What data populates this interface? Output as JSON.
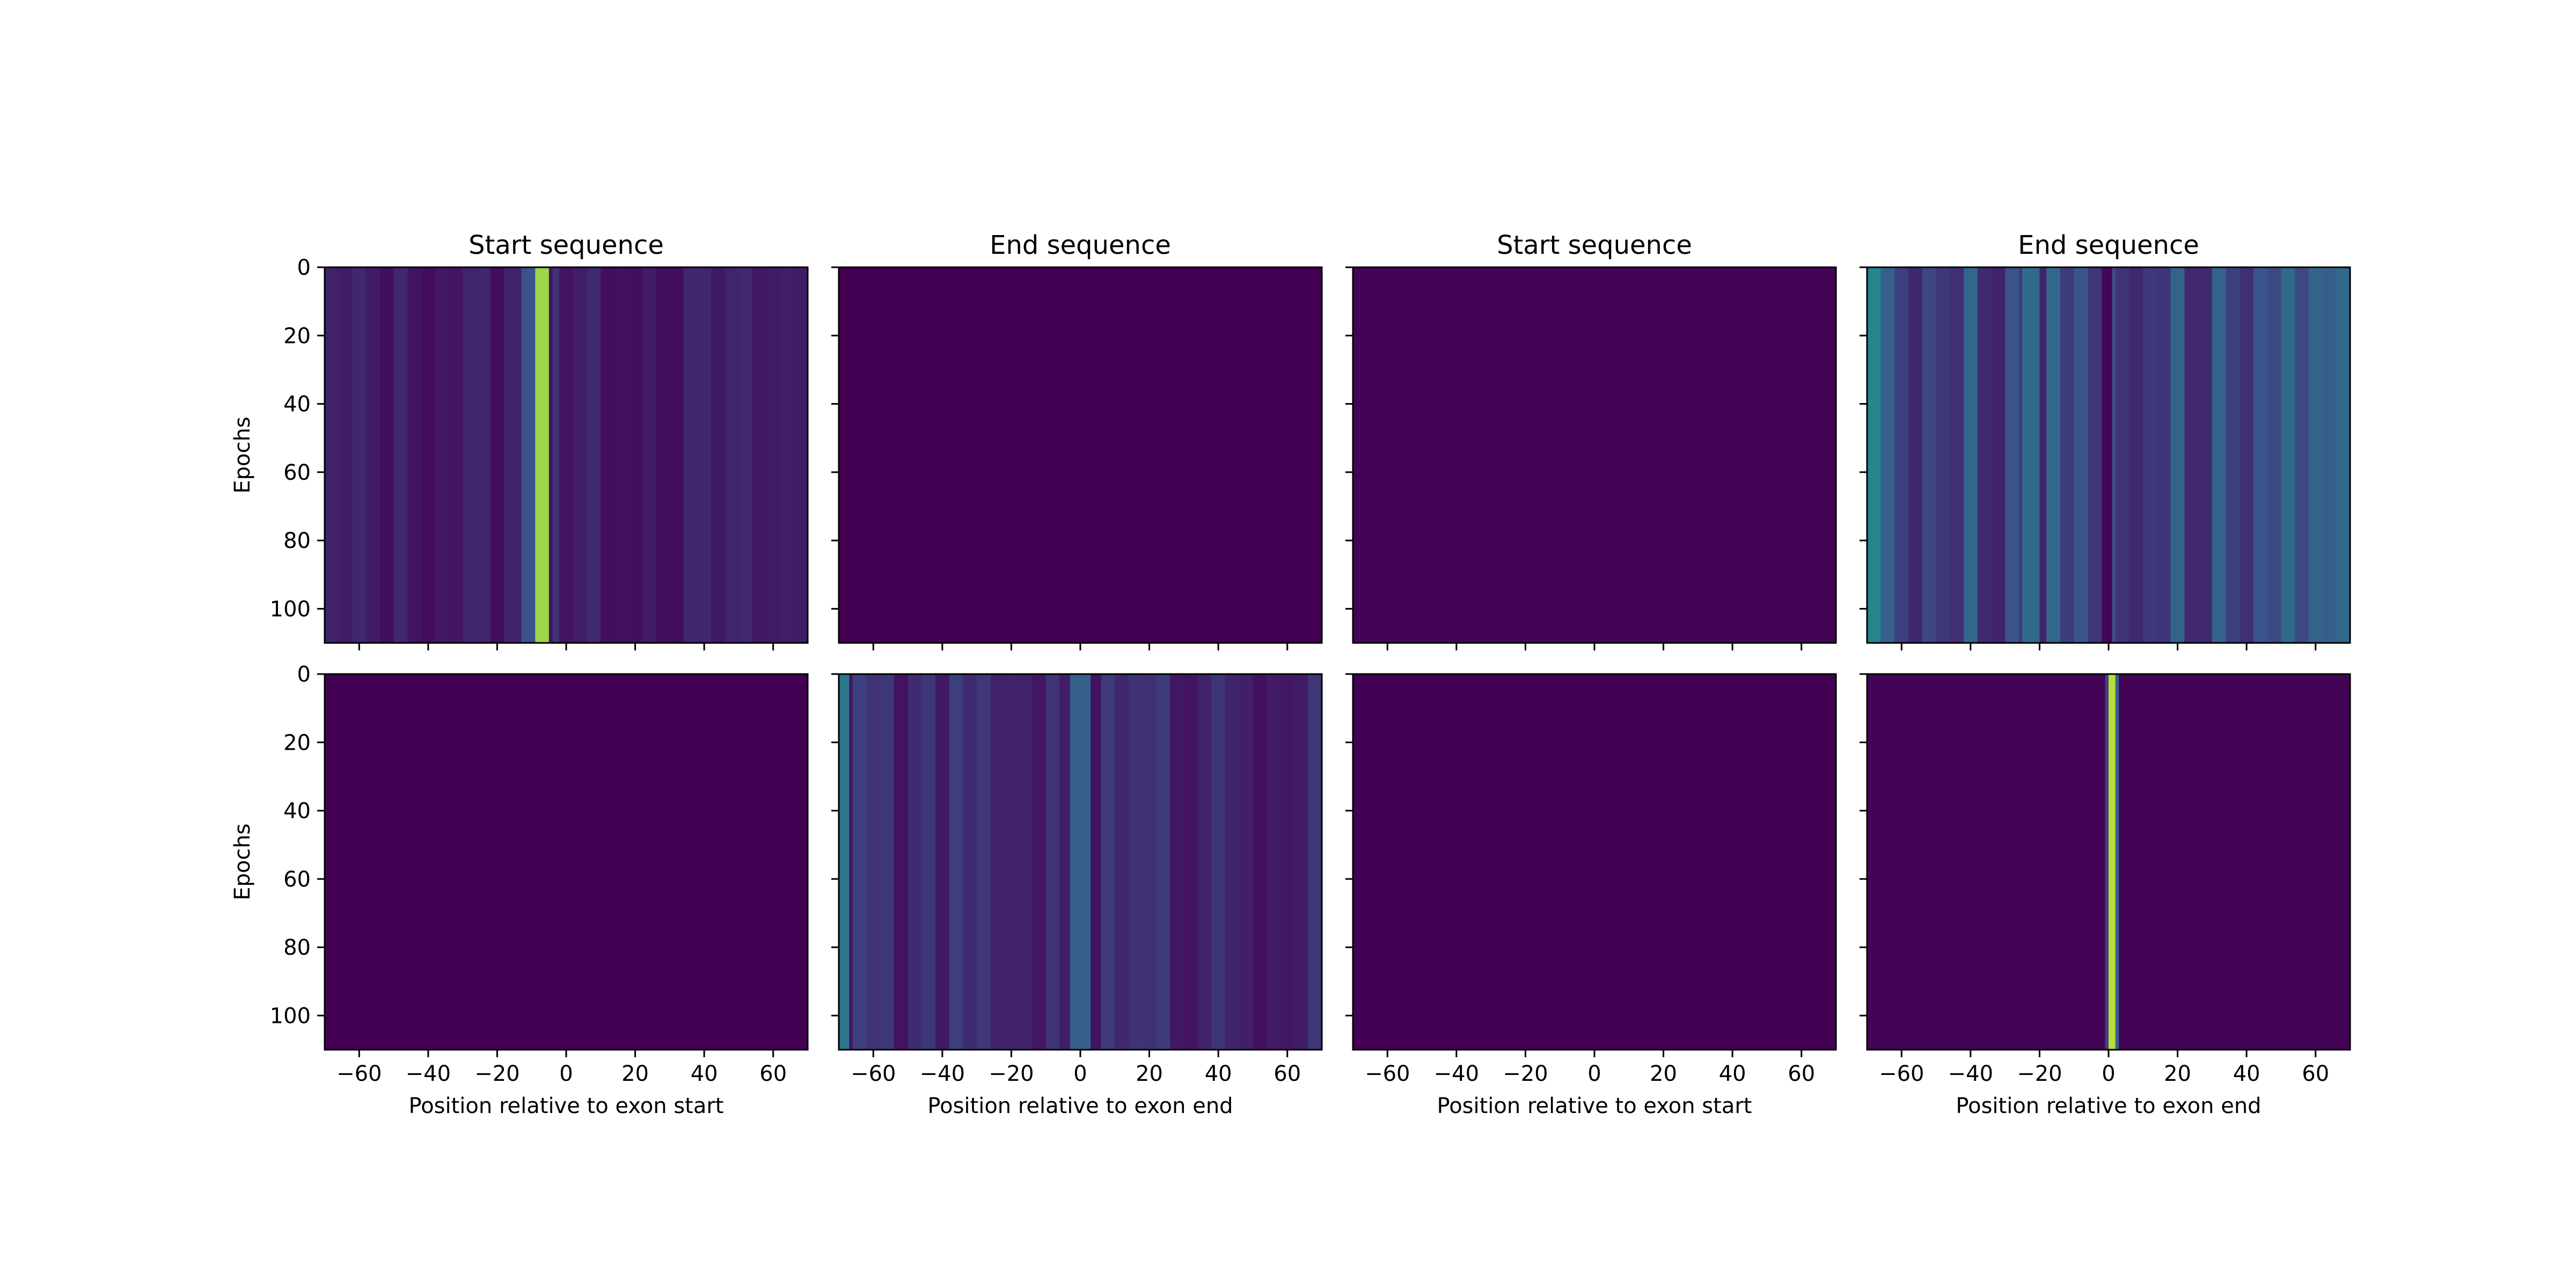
{
  "chart_data": [
    {
      "type": "heatmap",
      "title": "Start sequence",
      "xlabel": "",
      "ylabel": "Epochs",
      "xlim": [
        -70,
        70
      ],
      "ylim": [
        110,
        0
      ],
      "xticks": [
        -60,
        -40,
        -20,
        0,
        20,
        40,
        60
      ],
      "yticks": [
        0,
        20,
        40,
        60,
        80,
        100
      ],
      "show_xticklabels": false,
      "show_yticklabels": true,
      "colormap": "viridis",
      "features": [
        {
          "x": [
            -9,
            -5
          ],
          "intensity": 0.85
        },
        {
          "x": [
            -13,
            -9
          ],
          "intensity": 0.25
        },
        {
          "x": [
            -4,
            -2
          ],
          "intensity": 0.15
        }
      ],
      "background_intensity": 0.08
    },
    {
      "type": "heatmap",
      "title": "End sequence",
      "xlabel": "",
      "ylabel": "",
      "xlim": [
        -70,
        70
      ],
      "ylim": [
        110,
        0
      ],
      "xticks": [
        -60,
        -40,
        -20,
        0,
        20,
        40,
        60
      ],
      "yticks": [
        0,
        20,
        40,
        60,
        80,
        100
      ],
      "show_xticklabels": false,
      "show_yticklabels": false,
      "colormap": "viridis",
      "features": [],
      "background_intensity": 0.0
    },
    {
      "type": "heatmap",
      "title": "Start sequence",
      "xlabel": "",
      "ylabel": "",
      "xlim": [
        -70,
        70
      ],
      "ylim": [
        110,
        0
      ],
      "xticks": [
        -60,
        -40,
        -20,
        0,
        20,
        40,
        60
      ],
      "yticks": [
        0,
        20,
        40,
        60,
        80,
        100
      ],
      "show_xticklabels": false,
      "show_yticklabels": false,
      "colormap": "viridis",
      "features": [],
      "background_intensity": 0.01
    },
    {
      "type": "heatmap",
      "title": "End sequence",
      "xlabel": "",
      "ylabel": "",
      "xlim": [
        -70,
        70
      ],
      "ylim": [
        110,
        0
      ],
      "xticks": [
        -60,
        -40,
        -20,
        0,
        20,
        40,
        60
      ],
      "yticks": [
        0,
        20,
        40,
        60,
        80,
        100
      ],
      "show_xticklabels": false,
      "show_yticklabels": false,
      "colormap": "viridis",
      "features": [
        {
          "x": [
            -70,
            -66
          ],
          "intensity": 0.45
        },
        {
          "x": [
            -25,
            -20
          ],
          "intensity": 0.35
        },
        {
          "x": [
            -2,
            1
          ],
          "intensity": 0.02
        }
      ],
      "background_intensity": 0.22
    },
    {
      "type": "heatmap",
      "title": "",
      "xlabel": "",
      "ylabel": "Epochs",
      "xlim": [
        -70,
        70
      ],
      "ylim": [
        110,
        0
      ],
      "xticks": [
        -60,
        -40,
        -20,
        0,
        20,
        40,
        60
      ],
      "yticks": [
        0,
        20,
        40,
        60,
        80,
        100
      ],
      "show_xticklabels": true,
      "show_yticklabels": true,
      "colormap": "viridis",
      "features": [],
      "background_intensity": 0.0
    },
    {
      "type": "heatmap",
      "title": "",
      "xlabel": "Position relative to exon end",
      "ylabel": "",
      "xlim": [
        -70,
        70
      ],
      "ylim": [
        110,
        0
      ],
      "xticks": [
        -60,
        -40,
        -20,
        0,
        20,
        40,
        60
      ],
      "yticks": [
        0,
        20,
        40,
        60,
        80,
        100
      ],
      "show_xticklabels": true,
      "show_yticklabels": false,
      "colormap": "viridis",
      "features": [
        {
          "x": [
            -70,
            -67
          ],
          "intensity": 0.4
        },
        {
          "x": [
            -3,
            3
          ],
          "intensity": 0.3
        }
      ],
      "background_intensity": 0.12
    },
    {
      "type": "heatmap",
      "title": "",
      "xlabel": "Position relative to exon start",
      "ylabel": "",
      "xlim": [
        -70,
        70
      ],
      "ylim": [
        110,
        0
      ],
      "xticks": [
        -60,
        -40,
        -20,
        0,
        20,
        40,
        60
      ],
      "yticks": [
        0,
        20,
        40,
        60,
        80,
        100
      ],
      "show_xticklabels": true,
      "show_yticklabels": false,
      "colormap": "viridis",
      "features": [],
      "background_intensity": 0.0
    },
    {
      "type": "heatmap",
      "title": "",
      "xlabel": "Position relative to exon end",
      "ylabel": "",
      "xlim": [
        -70,
        70
      ],
      "ylim": [
        110,
        0
      ],
      "xticks": [
        -60,
        -40,
        -20,
        0,
        20,
        40,
        60
      ],
      "yticks": [
        0,
        20,
        40,
        60,
        80,
        100
      ],
      "show_xticklabels": true,
      "show_yticklabels": false,
      "colormap": "viridis",
      "features": [
        {
          "x": [
            0,
            2
          ],
          "intensity": 0.9
        },
        {
          "x": [
            -1,
            0
          ],
          "intensity": 0.2
        },
        {
          "x": [
            2,
            3
          ],
          "intensity": 0.3
        }
      ],
      "background_intensity": 0.01
    }
  ],
  "bottom_left_xlabel": "Position relative to exon start"
}
